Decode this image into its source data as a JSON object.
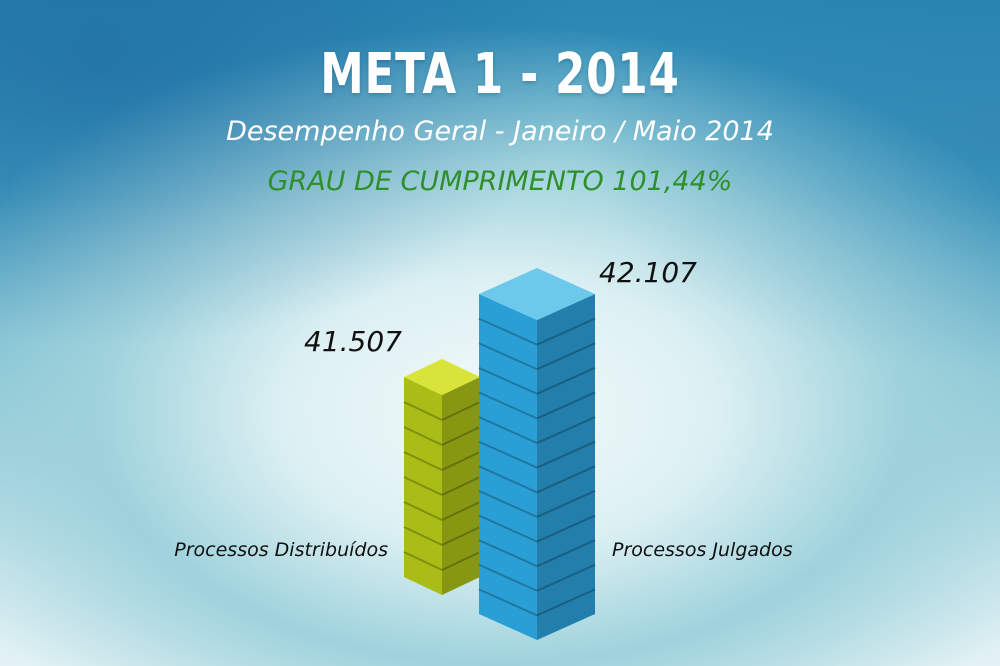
{
  "header": {
    "title": "META 1 - 2014",
    "subtitle": "Desempenho Geral - Janeiro / Maio 2014",
    "kpi": "GRAU DE CUMPRIMENTO 101,44%"
  },
  "colors": {
    "kpi": "#2e8f2b",
    "series_green_top": "#d8e43a",
    "series_green_front": "#a9bd16",
    "series_blue_top": "#6cc9ec",
    "series_blue_front": "#2a9fd6"
  },
  "chart_data": {
    "type": "bar",
    "title": "META 1 - 2014",
    "subtitle": "Desempenho Geral - Janeiro / Maio 2014",
    "categories": [
      "Processos Distribuídos",
      "Processos Julgados"
    ],
    "values": [
      41507,
      42107
    ],
    "value_labels": [
      "41.507",
      "42.107"
    ],
    "xlabel": "",
    "ylabel": "",
    "grid": false,
    "legend": "none"
  }
}
